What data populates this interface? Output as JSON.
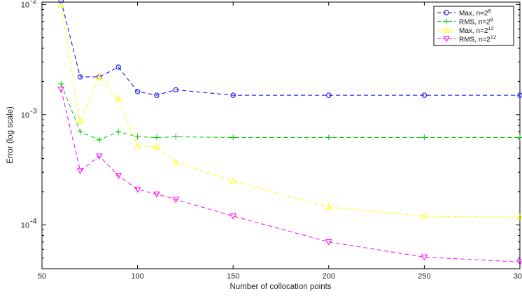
{
  "chart_data": {
    "type": "line",
    "xlabel": "Number of collocation points",
    "ylabel": "Error (log scale)",
    "xlim": [
      50,
      300
    ],
    "ylim": [
      4e-05,
      0.0105
    ],
    "yscale": "log",
    "xticks": [
      "50",
      "100",
      "150",
      "200",
      "250",
      "300"
    ],
    "yticks": [
      {
        "base": "10",
        "exp": "-2",
        "value": 0.01
      },
      {
        "base": "10",
        "exp": "-3",
        "value": 0.001
      },
      {
        "base": "10",
        "exp": "-4",
        "value": 0.0001
      }
    ],
    "legend_position": "top-right",
    "grid": false,
    "series": [
      {
        "name": "Max, n=2^8",
        "legend_base": "Max, n=2",
        "legend_exp": "8",
        "color": "#0000ff",
        "marker": "circle",
        "x": [
          60,
          70,
          80,
          90,
          100,
          110,
          120,
          150,
          200,
          250,
          300
        ],
        "y": [
          0.0108,
          0.0022,
          0.0022,
          0.0027,
          0.00162,
          0.0015,
          0.00168,
          0.0015,
          0.0015,
          0.0015,
          0.0015
        ]
      },
      {
        "name": "RMS, n=2^8",
        "legend_base": "RMS, n=2",
        "legend_exp": "8",
        "color": "#00cc00",
        "marker": "plus",
        "x": [
          60,
          70,
          80,
          90,
          100,
          110,
          120,
          150,
          200,
          250,
          300
        ],
        "y": [
          0.0019,
          0.0007,
          0.00059,
          0.0007,
          0.00063,
          0.00062,
          0.00063,
          0.00062,
          0.00062,
          0.00062,
          0.00062
        ]
      },
      {
        "name": "Max, n=2^12",
        "legend_base": "Max, n=2",
        "legend_exp": "12",
        "color": "#ffff00",
        "marker": "triangle-up",
        "x": [
          60,
          70,
          80,
          90,
          100,
          110,
          120,
          150,
          200,
          250,
          300
        ],
        "y": [
          0.0098,
          0.00087,
          0.0022,
          0.0014,
          0.00052,
          0.00051,
          0.00037,
          0.00025,
          0.000145,
          0.00012,
          0.000117
        ]
      },
      {
        "name": "RMS, n=2^12",
        "legend_base": "RMS, n=2",
        "legend_exp": "12",
        "color": "#ff00ff",
        "marker": "triangle-down",
        "x": [
          60,
          70,
          80,
          90,
          100,
          110,
          120,
          150,
          200,
          250,
          300
        ],
        "y": [
          0.0017,
          0.00031,
          0.00042,
          0.00028,
          0.00021,
          0.00019,
          0.00017,
          0.00012,
          7e-05,
          5.1e-05,
          4.6e-05
        ]
      }
    ]
  }
}
